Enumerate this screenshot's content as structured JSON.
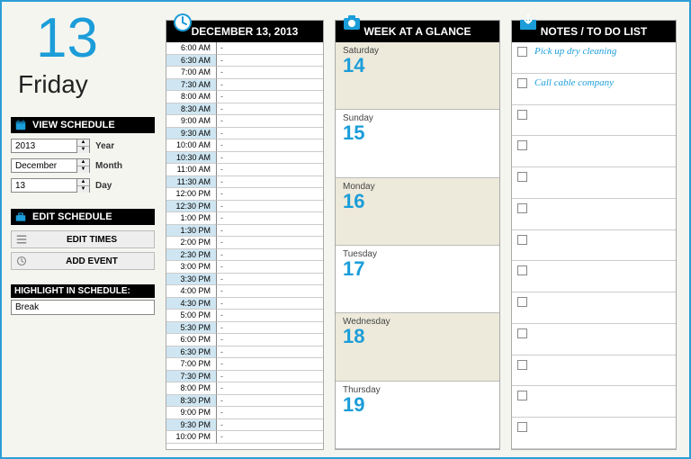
{
  "colors": {
    "accent": "#1b9dd9",
    "header_bg": "#000000",
    "shade": "#cfe6f2",
    "week_alt": "#edeadb"
  },
  "date": {
    "big_number": "13",
    "day_name": "Friday"
  },
  "view_schedule": {
    "title": "VIEW SCHEDULE",
    "year": {
      "value": "2013",
      "label": "Year"
    },
    "month": {
      "value": "December",
      "label": "Month"
    },
    "day": {
      "value": "13",
      "label": "Day"
    }
  },
  "edit_schedule": {
    "title": "EDIT SCHEDULE",
    "edit_times": "EDIT TIMES",
    "add_event": "ADD EVENT"
  },
  "highlight": {
    "label": "HIGHLIGHT IN SCHEDULE:",
    "value": "Break"
  },
  "schedule": {
    "title": "DECEMBER 13, 2013",
    "slots": [
      {
        "time": "6:00 AM",
        "evt": "-",
        "shade": false
      },
      {
        "time": "6:30 AM",
        "evt": "-",
        "shade": true
      },
      {
        "time": "7:00 AM",
        "evt": "-",
        "shade": false
      },
      {
        "time": "7:30 AM",
        "evt": "-",
        "shade": true
      },
      {
        "time": "8:00 AM",
        "evt": "-",
        "shade": false
      },
      {
        "time": "8:30 AM",
        "evt": "-",
        "shade": true
      },
      {
        "time": "9:00 AM",
        "evt": "-",
        "shade": false
      },
      {
        "time": "9:30 AM",
        "evt": "-",
        "shade": true
      },
      {
        "time": "10:00 AM",
        "evt": "-",
        "shade": false
      },
      {
        "time": "10:30 AM",
        "evt": "-",
        "shade": true
      },
      {
        "time": "11:00 AM",
        "evt": "-",
        "shade": false
      },
      {
        "time": "11:30 AM",
        "evt": "-",
        "shade": true
      },
      {
        "time": "12:00 PM",
        "evt": "-",
        "shade": false
      },
      {
        "time": "12:30 PM",
        "evt": "-",
        "shade": true
      },
      {
        "time": "1:00 PM",
        "evt": "-",
        "shade": false
      },
      {
        "time": "1:30 PM",
        "evt": "-",
        "shade": true
      },
      {
        "time": "2:00 PM",
        "evt": "-",
        "shade": false
      },
      {
        "time": "2:30 PM",
        "evt": "-",
        "shade": true
      },
      {
        "time": "3:00 PM",
        "evt": "-",
        "shade": false
      },
      {
        "time": "3:30 PM",
        "evt": "-",
        "shade": true
      },
      {
        "time": "4:00 PM",
        "evt": "-",
        "shade": false
      },
      {
        "time": "4:30 PM",
        "evt": "-",
        "shade": true
      },
      {
        "time": "5:00 PM",
        "evt": "-",
        "shade": false
      },
      {
        "time": "5:30 PM",
        "evt": "-",
        "shade": true
      },
      {
        "time": "6:00 PM",
        "evt": "-",
        "shade": false
      },
      {
        "time": "6:30 PM",
        "evt": "-",
        "shade": true
      },
      {
        "time": "7:00 PM",
        "evt": "-",
        "shade": false
      },
      {
        "time": "7:30 PM",
        "evt": "-",
        "shade": true
      },
      {
        "time": "8:00 PM",
        "evt": "-",
        "shade": false
      },
      {
        "time": "8:30 PM",
        "evt": "-",
        "shade": true
      },
      {
        "time": "9:00 PM",
        "evt": "-",
        "shade": false
      },
      {
        "time": "9:30 PM",
        "evt": "-",
        "shade": true
      },
      {
        "time": "10:00 PM",
        "evt": "-",
        "shade": false
      }
    ]
  },
  "week": {
    "title": "WEEK AT A GLANCE",
    "days": [
      {
        "dow": "Saturday",
        "num": "14"
      },
      {
        "dow": "Sunday",
        "num": "15"
      },
      {
        "dow": "Monday",
        "num": "16"
      },
      {
        "dow": "Tuesday",
        "num": "17"
      },
      {
        "dow": "Wednesday",
        "num": "18"
      },
      {
        "dow": "Thursday",
        "num": "19"
      }
    ]
  },
  "notes": {
    "title": "NOTES / TO DO LIST",
    "items": [
      {
        "text": "Pick up dry cleaning"
      },
      {
        "text": "Call cable company"
      },
      {
        "text": ""
      },
      {
        "text": ""
      },
      {
        "text": ""
      },
      {
        "text": ""
      },
      {
        "text": ""
      },
      {
        "text": ""
      },
      {
        "text": ""
      },
      {
        "text": ""
      },
      {
        "text": ""
      },
      {
        "text": ""
      },
      {
        "text": ""
      }
    ]
  }
}
